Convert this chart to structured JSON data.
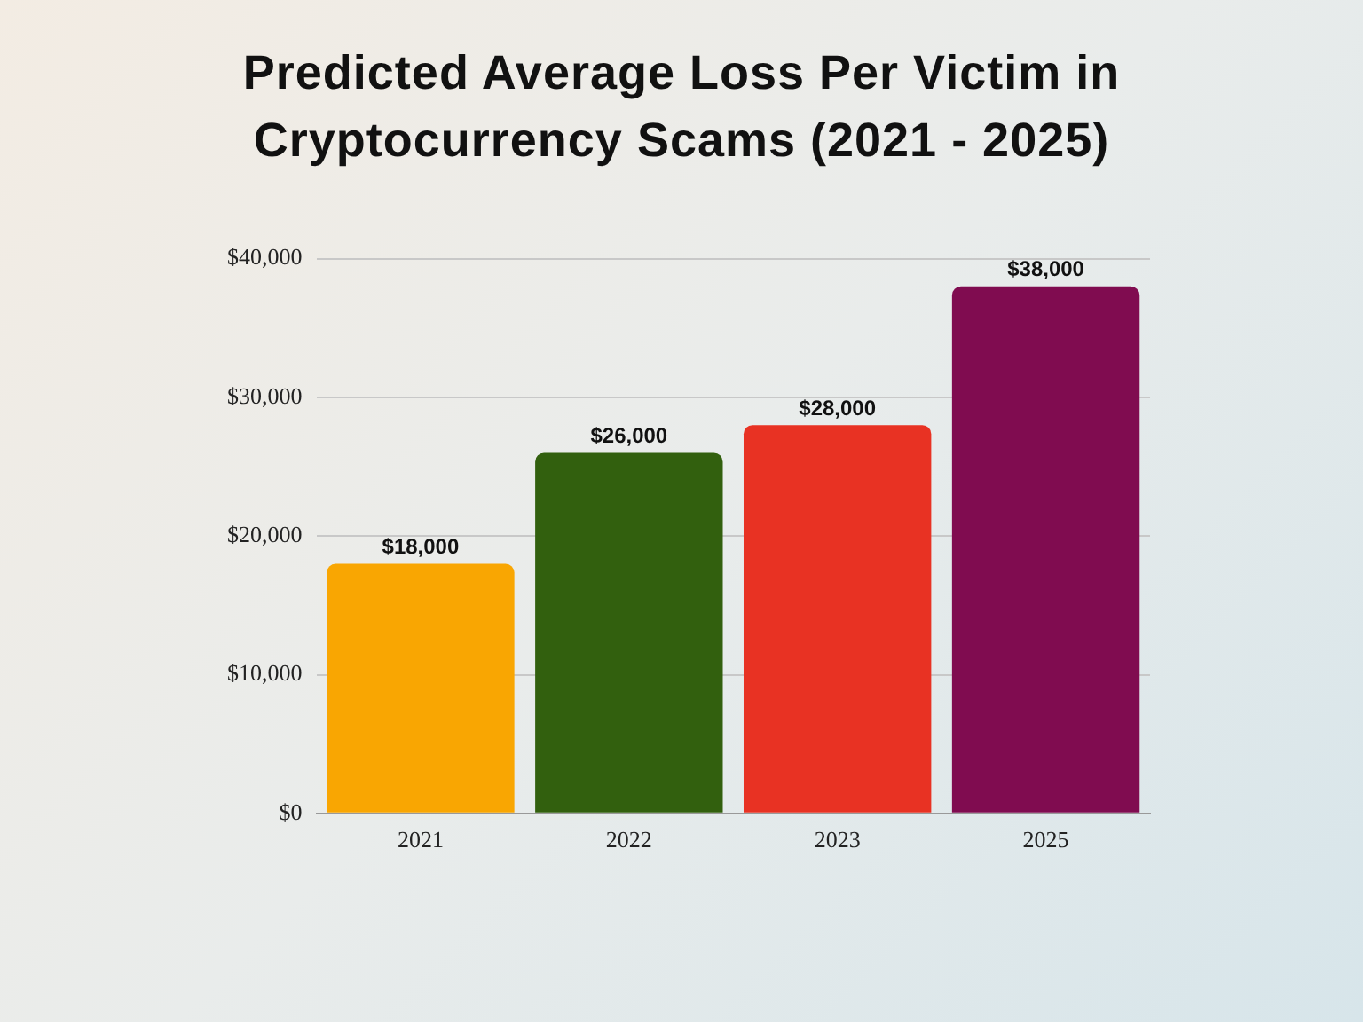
{
  "chart_data": {
    "type": "bar",
    "title": "Predicted Average Loss Per Victim in Cryptocurrency Scams (2021 - 2025)",
    "categories": [
      "2021",
      "2022",
      "2023",
      "2025"
    ],
    "values": [
      18000,
      26000,
      28000,
      38000
    ],
    "colors": [
      "#f9a602",
      "#32600e",
      "#e83223",
      "#800c50"
    ],
    "value_labels": [
      "$18,000",
      "$26,000",
      "$28,000",
      "$38,000"
    ],
    "ylim": [
      0,
      40000
    ],
    "yticks": [
      {
        "value": 0,
        "label": "$0"
      },
      {
        "value": 10000,
        "label": "$10,000"
      },
      {
        "value": 20000,
        "label": "$20,000"
      },
      {
        "value": 30000,
        "label": "$30,000"
      },
      {
        "value": 40000,
        "label": "$40,000"
      }
    ],
    "grid": "y",
    "legend": false
  }
}
